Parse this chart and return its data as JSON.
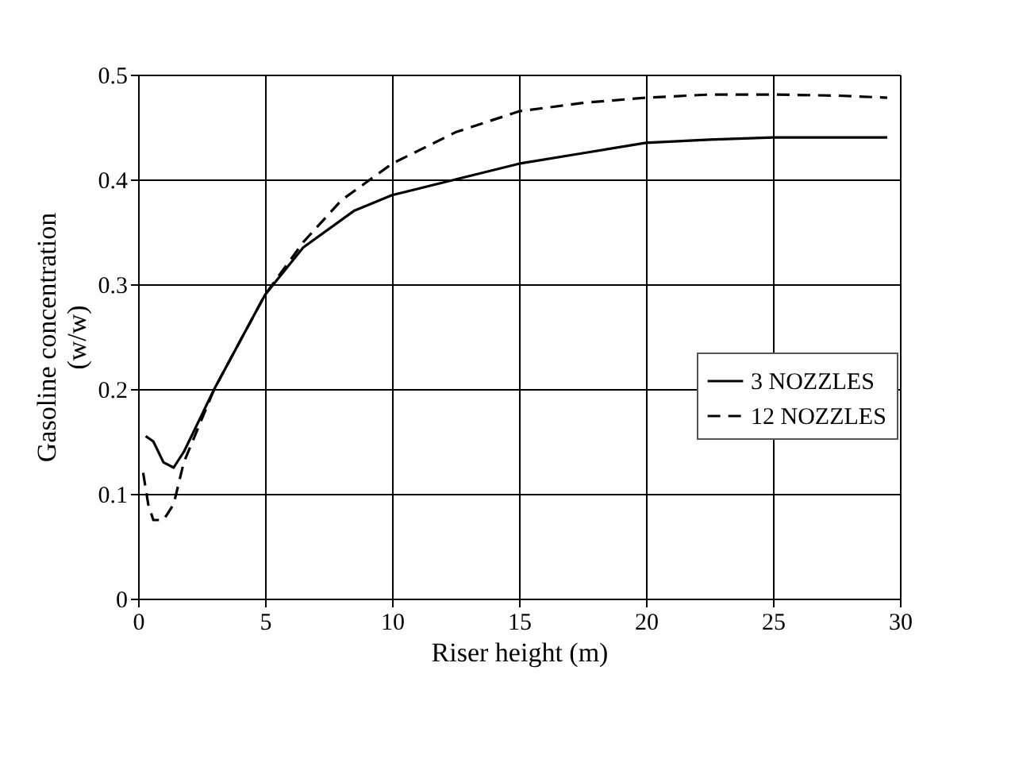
{
  "chart_data": {
    "type": "line",
    "xlabel": "Riser height (m)",
    "ylabel": "Gasoline concentration (w/w)",
    "xlim": [
      0,
      30
    ],
    "xticks": [
      0,
      5,
      10,
      15,
      20,
      25,
      30
    ],
    "ylim": [
      0,
      0.5
    ],
    "yticks": [
      {
        "value": 0,
        "label": "0"
      },
      0.1,
      0.2,
      0.3,
      0.4,
      0.5
    ],
    "grid": true,
    "legend": "right",
    "marker": "none",
    "series": [
      {
        "name": "3 NOZZLES",
        "color": "#000000",
        "line_style": "solid",
        "x": [
          0.3,
          0.6,
          1.0,
          1.4,
          1.8,
          2.4,
          3.0,
          4.0,
          5.0,
          6.5,
          8.5,
          10,
          12.5,
          15,
          17.5,
          20,
          22.5,
          25,
          27.5,
          29.5
        ],
        "values": [
          0.155,
          0.15,
          0.13,
          0.125,
          0.14,
          0.17,
          0.2,
          0.245,
          0.29,
          0.335,
          0.37,
          0.385,
          0.4,
          0.415,
          0.425,
          0.435,
          0.438,
          0.44,
          0.44,
          0.44
        ]
      },
      {
        "name": "12 NOZZLES",
        "color": "#000000",
        "line_style": "dashed",
        "x": [
          0.2,
          0.4,
          0.6,
          1.0,
          1.4,
          1.8,
          2.4,
          3.0,
          4.0,
          5.0,
          6.5,
          8.0,
          10,
          12.5,
          15,
          17.5,
          20,
          22.5,
          25,
          27.5,
          29.5
        ],
        "values": [
          0.12,
          0.09,
          0.075,
          0.075,
          0.09,
          0.13,
          0.165,
          0.2,
          0.245,
          0.29,
          0.34,
          0.38,
          0.415,
          0.445,
          0.465,
          0.473,
          0.478,
          0.481,
          0.481,
          0.48,
          0.478
        ]
      }
    ]
  }
}
